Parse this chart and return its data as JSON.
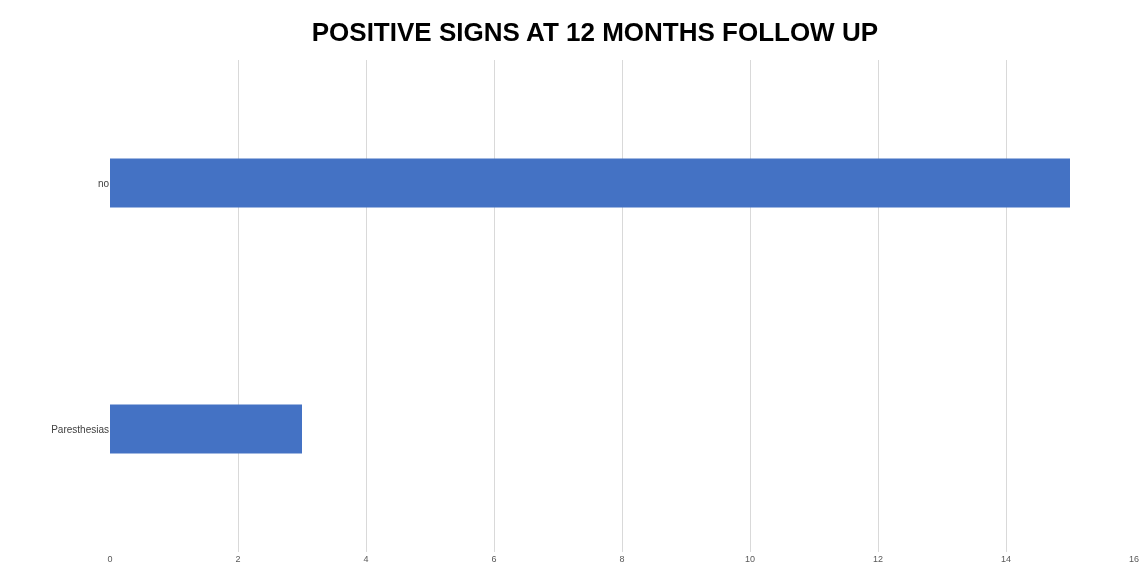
{
  "chart_data": {
    "type": "bar",
    "orientation": "horizontal",
    "title": "POSITIVE SIGNS AT 12 MONTHS FOLLOW UP",
    "categories": [
      "no",
      "Paresthesias"
    ],
    "values": [
      15,
      3
    ],
    "color": "#4472c4",
    "xlim": [
      0,
      16
    ],
    "xticks": [
      0,
      2,
      4,
      6,
      8,
      10,
      12,
      14,
      16
    ],
    "grid": "x"
  }
}
